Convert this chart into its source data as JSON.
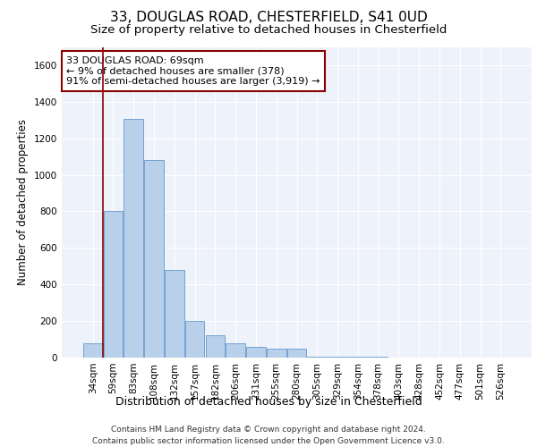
{
  "title1": "33, DOUGLAS ROAD, CHESTERFIELD, S41 0UD",
  "title2": "Size of property relative to detached houses in Chesterfield",
  "xlabel": "Distribution of detached houses by size in Chesterfield",
  "ylabel": "Number of detached properties",
  "footer1": "Contains HM Land Registry data © Crown copyright and database right 2024.",
  "footer2": "Contains public sector information licensed under the Open Government Licence v3.0.",
  "annotation_title": "33 DOUGLAS ROAD: 69sqm",
  "annotation_line1": "← 9% of detached houses are smaller (378)",
  "annotation_line2": "91% of semi-detached houses are larger (3,919) →",
  "bar_values": [
    80,
    800,
    1305,
    1080,
    480,
    200,
    120,
    80,
    60,
    50,
    50,
    5,
    3,
    3,
    3,
    2,
    2,
    2,
    2,
    2,
    2
  ],
  "categories": [
    "34sqm",
    "59sqm",
    "83sqm",
    "108sqm",
    "132sqm",
    "157sqm",
    "182sqm",
    "206sqm",
    "231sqm",
    "255sqm",
    "280sqm",
    "305sqm",
    "329sqm",
    "354sqm",
    "378sqm",
    "403sqm",
    "428sqm",
    "452sqm",
    "477sqm",
    "501sqm",
    "526sqm"
  ],
  "bar_color": "#b8d0ea",
  "bar_edge_color": "#6699cc",
  "red_line_x": 0.5,
  "ylim": [
    0,
    1700
  ],
  "yticks": [
    0,
    200,
    400,
    600,
    800,
    1000,
    1200,
    1400,
    1600
  ],
  "background_color": "#eef2fb",
  "grid_color": "#ffffff",
  "title1_fontsize": 11,
  "title2_fontsize": 9.5,
  "xlabel_fontsize": 9,
  "ylabel_fontsize": 8.5,
  "tick_fontsize": 7.5,
  "footer_fontsize": 6.5,
  "ann_fontsize": 8
}
